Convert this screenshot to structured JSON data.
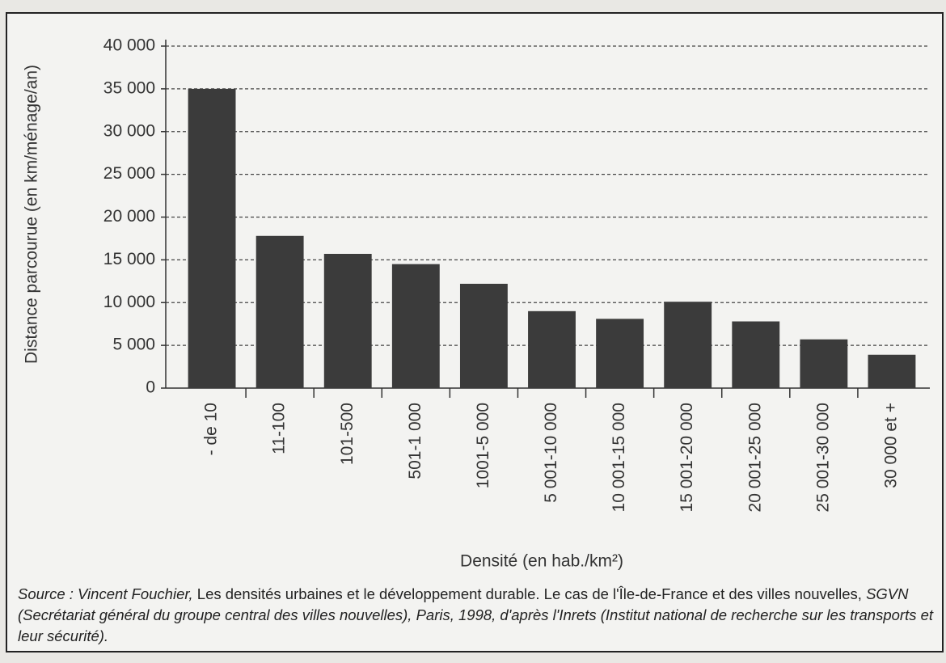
{
  "chart_data": {
    "type": "bar",
    "categories": [
      "- de 10",
      "11-100",
      "101-500",
      "501-1 000",
      "1001-5 000",
      "5 001-10 000",
      "10 001-15 000",
      "15 001-20 000",
      "20 001-25 000",
      "25 001-30 000",
      "30 000 et +"
    ],
    "values": [
      35000,
      17800,
      15700,
      14500,
      12200,
      9000,
      8100,
      10100,
      7800,
      5700,
      3900
    ],
    "color": "#3b3b3b",
    "ylim": [
      0,
      40000
    ],
    "yticks": [
      0,
      {
        "value": 5000,
        "label": "5 000"
      },
      {
        "value": 10000,
        "label": "10 000"
      },
      {
        "value": 15000,
        "label": "15 000"
      },
      {
        "value": 20000,
        "label": "20 000"
      },
      {
        "value": 25000,
        "label": "25 000"
      },
      {
        "value": 30000,
        "label": "30 000"
      },
      {
        "value": 35000,
        "label": "35 000"
      },
      {
        "value": 40000,
        "label": "40 000"
      }
    ],
    "grid": true,
    "x_label": "Densité (en hab./km²)",
    "y_label": "Distance parcourue (en km/ménage/an)",
    "source": [
      "Source : Vincent Fouchier,",
      "Les densités urbaines et le développement durable. Le cas de l'Île-de-France et des villes nouvelles,",
      "SGVN (Secrétariat général du groupe central des villes nouvelles), Paris, 1998, d'après l'Inrets (Institut national de recherche sur les transports et leur sécurité)."
    ]
  }
}
